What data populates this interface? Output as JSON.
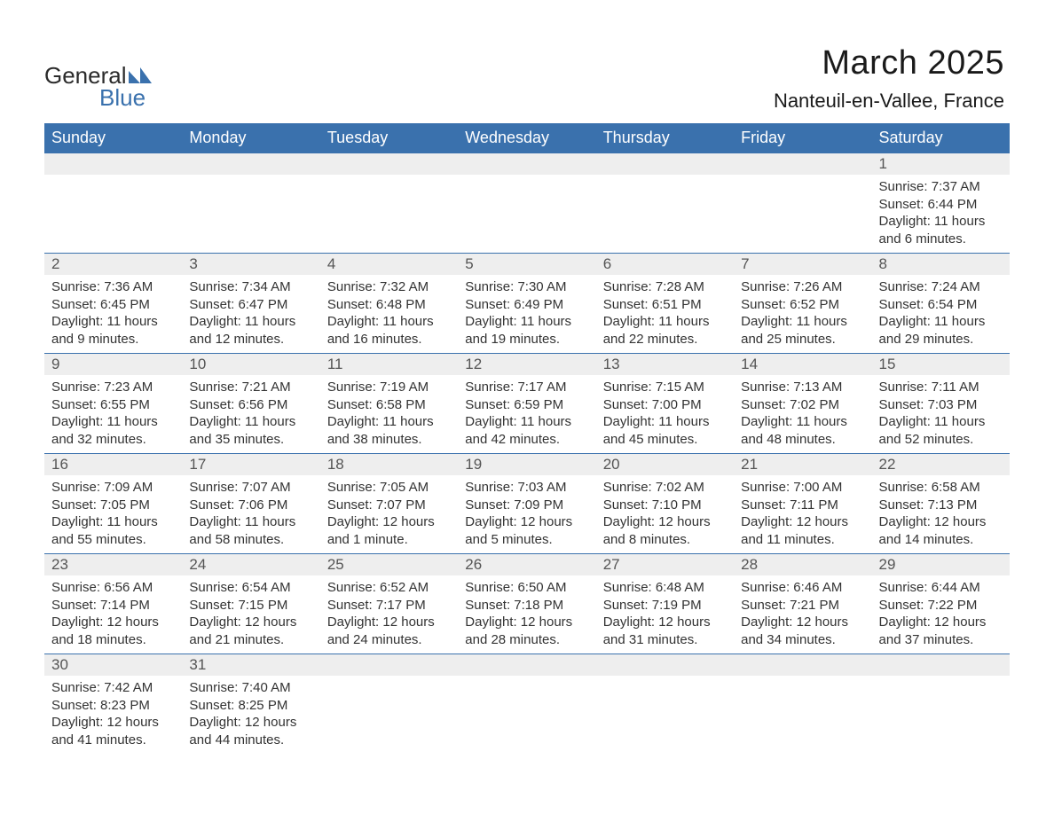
{
  "logo": {
    "text1": "General",
    "text2": "Blue"
  },
  "title": "March 2025",
  "location": "Nanteuil-en-Vallee, France",
  "colors": {
    "header_bg": "#3a71ad",
    "header_text": "#ffffff",
    "daynum_bg": "#eeeeee",
    "daynum_text": "#555555",
    "body_text": "#333333",
    "rule": "#3a71ad",
    "page_bg": "#ffffff",
    "logo_accent": "#3a71ad"
  },
  "typography": {
    "title_fontsize": 38,
    "location_fontsize": 22,
    "header_fontsize": 18,
    "daynum_fontsize": 17,
    "cell_fontsize": 15,
    "font_family": "Arial"
  },
  "weekdays": [
    "Sunday",
    "Monday",
    "Tuesday",
    "Wednesday",
    "Thursday",
    "Friday",
    "Saturday"
  ],
  "weeks": [
    [
      null,
      null,
      null,
      null,
      null,
      null,
      {
        "n": "1",
        "sr": "Sunrise: 7:37 AM",
        "ss": "Sunset: 6:44 PM",
        "d1": "Daylight: 11 hours",
        "d2": "and 6 minutes."
      }
    ],
    [
      {
        "n": "2",
        "sr": "Sunrise: 7:36 AM",
        "ss": "Sunset: 6:45 PM",
        "d1": "Daylight: 11 hours",
        "d2": "and 9 minutes."
      },
      {
        "n": "3",
        "sr": "Sunrise: 7:34 AM",
        "ss": "Sunset: 6:47 PM",
        "d1": "Daylight: 11 hours",
        "d2": "and 12 minutes."
      },
      {
        "n": "4",
        "sr": "Sunrise: 7:32 AM",
        "ss": "Sunset: 6:48 PM",
        "d1": "Daylight: 11 hours",
        "d2": "and 16 minutes."
      },
      {
        "n": "5",
        "sr": "Sunrise: 7:30 AM",
        "ss": "Sunset: 6:49 PM",
        "d1": "Daylight: 11 hours",
        "d2": "and 19 minutes."
      },
      {
        "n": "6",
        "sr": "Sunrise: 7:28 AM",
        "ss": "Sunset: 6:51 PM",
        "d1": "Daylight: 11 hours",
        "d2": "and 22 minutes."
      },
      {
        "n": "7",
        "sr": "Sunrise: 7:26 AM",
        "ss": "Sunset: 6:52 PM",
        "d1": "Daylight: 11 hours",
        "d2": "and 25 minutes."
      },
      {
        "n": "8",
        "sr": "Sunrise: 7:24 AM",
        "ss": "Sunset: 6:54 PM",
        "d1": "Daylight: 11 hours",
        "d2": "and 29 minutes."
      }
    ],
    [
      {
        "n": "9",
        "sr": "Sunrise: 7:23 AM",
        "ss": "Sunset: 6:55 PM",
        "d1": "Daylight: 11 hours",
        "d2": "and 32 minutes."
      },
      {
        "n": "10",
        "sr": "Sunrise: 7:21 AM",
        "ss": "Sunset: 6:56 PM",
        "d1": "Daylight: 11 hours",
        "d2": "and 35 minutes."
      },
      {
        "n": "11",
        "sr": "Sunrise: 7:19 AM",
        "ss": "Sunset: 6:58 PM",
        "d1": "Daylight: 11 hours",
        "d2": "and 38 minutes."
      },
      {
        "n": "12",
        "sr": "Sunrise: 7:17 AM",
        "ss": "Sunset: 6:59 PM",
        "d1": "Daylight: 11 hours",
        "d2": "and 42 minutes."
      },
      {
        "n": "13",
        "sr": "Sunrise: 7:15 AM",
        "ss": "Sunset: 7:00 PM",
        "d1": "Daylight: 11 hours",
        "d2": "and 45 minutes."
      },
      {
        "n": "14",
        "sr": "Sunrise: 7:13 AM",
        "ss": "Sunset: 7:02 PM",
        "d1": "Daylight: 11 hours",
        "d2": "and 48 minutes."
      },
      {
        "n": "15",
        "sr": "Sunrise: 7:11 AM",
        "ss": "Sunset: 7:03 PM",
        "d1": "Daylight: 11 hours",
        "d2": "and 52 minutes."
      }
    ],
    [
      {
        "n": "16",
        "sr": "Sunrise: 7:09 AM",
        "ss": "Sunset: 7:05 PM",
        "d1": "Daylight: 11 hours",
        "d2": "and 55 minutes."
      },
      {
        "n": "17",
        "sr": "Sunrise: 7:07 AM",
        "ss": "Sunset: 7:06 PM",
        "d1": "Daylight: 11 hours",
        "d2": "and 58 minutes."
      },
      {
        "n": "18",
        "sr": "Sunrise: 7:05 AM",
        "ss": "Sunset: 7:07 PM",
        "d1": "Daylight: 12 hours",
        "d2": "and 1 minute."
      },
      {
        "n": "19",
        "sr": "Sunrise: 7:03 AM",
        "ss": "Sunset: 7:09 PM",
        "d1": "Daylight: 12 hours",
        "d2": "and 5 minutes."
      },
      {
        "n": "20",
        "sr": "Sunrise: 7:02 AM",
        "ss": "Sunset: 7:10 PM",
        "d1": "Daylight: 12 hours",
        "d2": "and 8 minutes."
      },
      {
        "n": "21",
        "sr": "Sunrise: 7:00 AM",
        "ss": "Sunset: 7:11 PM",
        "d1": "Daylight: 12 hours",
        "d2": "and 11 minutes."
      },
      {
        "n": "22",
        "sr": "Sunrise: 6:58 AM",
        "ss": "Sunset: 7:13 PM",
        "d1": "Daylight: 12 hours",
        "d2": "and 14 minutes."
      }
    ],
    [
      {
        "n": "23",
        "sr": "Sunrise: 6:56 AM",
        "ss": "Sunset: 7:14 PM",
        "d1": "Daylight: 12 hours",
        "d2": "and 18 minutes."
      },
      {
        "n": "24",
        "sr": "Sunrise: 6:54 AM",
        "ss": "Sunset: 7:15 PM",
        "d1": "Daylight: 12 hours",
        "d2": "and 21 minutes."
      },
      {
        "n": "25",
        "sr": "Sunrise: 6:52 AM",
        "ss": "Sunset: 7:17 PM",
        "d1": "Daylight: 12 hours",
        "d2": "and 24 minutes."
      },
      {
        "n": "26",
        "sr": "Sunrise: 6:50 AM",
        "ss": "Sunset: 7:18 PM",
        "d1": "Daylight: 12 hours",
        "d2": "and 28 minutes."
      },
      {
        "n": "27",
        "sr": "Sunrise: 6:48 AM",
        "ss": "Sunset: 7:19 PM",
        "d1": "Daylight: 12 hours",
        "d2": "and 31 minutes."
      },
      {
        "n": "28",
        "sr": "Sunrise: 6:46 AM",
        "ss": "Sunset: 7:21 PM",
        "d1": "Daylight: 12 hours",
        "d2": "and 34 minutes."
      },
      {
        "n": "29",
        "sr": "Sunrise: 6:44 AM",
        "ss": "Sunset: 7:22 PM",
        "d1": "Daylight: 12 hours",
        "d2": "and 37 minutes."
      }
    ],
    [
      {
        "n": "30",
        "sr": "Sunrise: 7:42 AM",
        "ss": "Sunset: 8:23 PM",
        "d1": "Daylight: 12 hours",
        "d2": "and 41 minutes."
      },
      {
        "n": "31",
        "sr": "Sunrise: 7:40 AM",
        "ss": "Sunset: 8:25 PM",
        "d1": "Daylight: 12 hours",
        "d2": "and 44 minutes."
      },
      null,
      null,
      null,
      null,
      null
    ]
  ]
}
